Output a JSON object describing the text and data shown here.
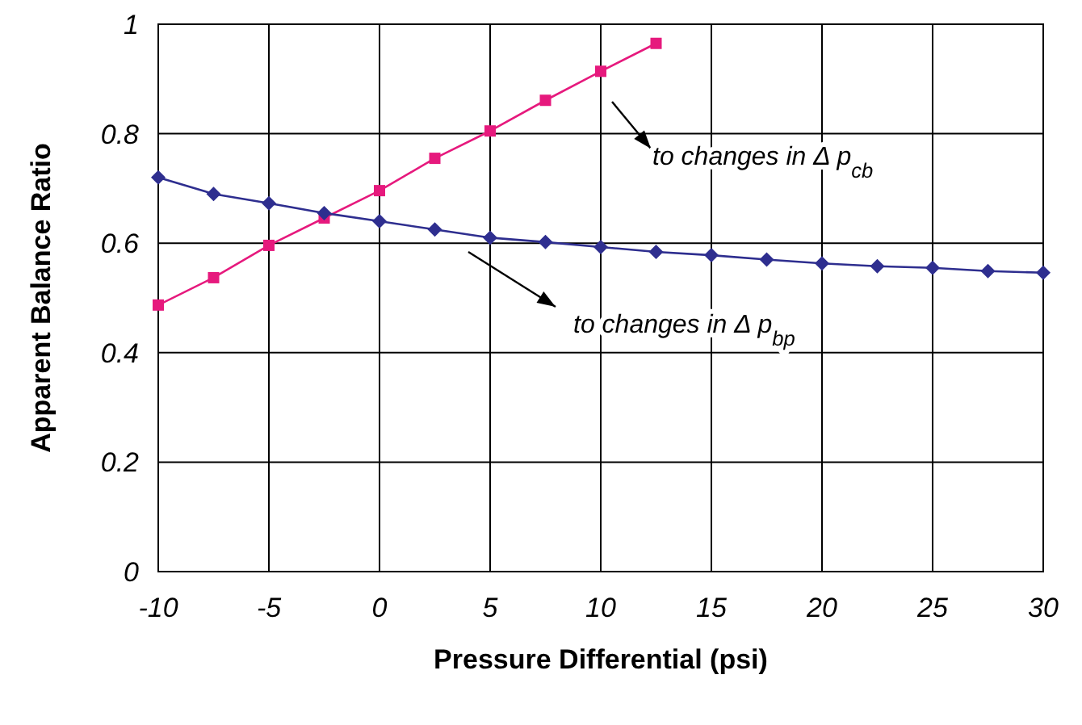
{
  "chart_data": {
    "type": "line",
    "xlabel": "Pressure Differential (psi)",
    "ylabel": "Apparent Balance Ratio",
    "xlim": [
      -10,
      30
    ],
    "xticks": [
      -10,
      -5,
      0,
      5,
      10,
      15,
      20,
      25,
      30
    ],
    "ylim": [
      0,
      1
    ],
    "yticks": [
      0,
      0.2,
      0.4,
      0.6,
      0.8,
      1
    ],
    "grid": true,
    "series": [
      {
        "color": "#2e2e8f",
        "marker": "diamond",
        "x": [
          -10,
          -7.5,
          -5,
          -2.5,
          0,
          2.5,
          5,
          7.5,
          10,
          12.5,
          15,
          17.5,
          20,
          22.5,
          25,
          27.5,
          30
        ],
        "values": [
          0.72,
          0.69,
          0.673,
          0.655,
          0.64,
          0.625,
          0.61,
          0.602,
          0.593,
          0.584,
          0.578,
          0.57,
          0.563,
          0.558,
          0.555,
          0.549,
          0.546
        ]
      },
      {
        "color": "#e6197d",
        "marker": "square",
        "x": [
          -10,
          -7.5,
          -5,
          -2.5,
          0,
          2.5,
          5,
          7.5,
          10,
          12.5
        ],
        "values": [
          0.487,
          0.537,
          0.596,
          0.646,
          0.696,
          0.755,
          0.805,
          0.861,
          0.914,
          0.965
        ]
      }
    ],
    "annotations": [
      "to changes in  Δ p$_{cb}$",
      "to changes in  Δ p$_{bp}$"
    ]
  }
}
